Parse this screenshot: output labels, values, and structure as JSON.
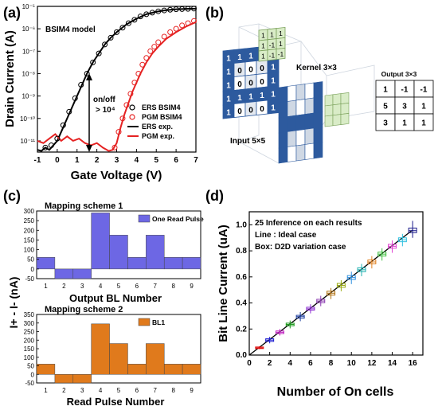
{
  "panels": [
    {
      "label": "(a)"
    },
    {
      "label": "(b)"
    },
    {
      "label": "(c)"
    },
    {
      "label": "(d)"
    }
  ],
  "chart_data": [
    {
      "type": "line",
      "panel": "(a)",
      "xlabel": "Gate Voltage (V)",
      "ylabel": "Drain Current (A)",
      "xlim": [
        -1,
        7
      ],
      "ylim_log10": [
        -11.5,
        -5
      ],
      "y_scale": "log",
      "x_ticks": [
        "-1",
        "0",
        "1",
        "2",
        "3",
        "4",
        "5",
        "6",
        "7"
      ],
      "y_ticks": [
        "10^-11",
        "10^-10",
        "10^-9",
        "10^-8",
        "10^-7",
        "10^-6",
        "10^-5"
      ],
      "inset_title": "BSIM4 model",
      "annotation": {
        "line1": "on/off",
        "line2": "> 10^4"
      },
      "legend_position": "lower-right",
      "series": [
        {
          "name": "ERS BSIM4",
          "style": "open-circle",
          "color": "#000000",
          "x": [
            -0.6,
            -0.3,
            0.0,
            0.3,
            0.6,
            0.9,
            1.2,
            1.5,
            1.8,
            2.1,
            2.4,
            2.7,
            3.0,
            3.3,
            3.6,
            3.9,
            4.2,
            4.5,
            4.8,
            5.1,
            5.4,
            5.7,
            6.0,
            6.3,
            6.6,
            6.9
          ],
          "log10_y": [
            -11.3,
            -11.2,
            -10.9,
            -10.3,
            -9.7,
            -9.1,
            -8.5,
            -8.0,
            -7.5,
            -7.1,
            -6.7,
            -6.4,
            -6.15,
            -5.95,
            -5.75,
            -5.6,
            -5.45,
            -5.35,
            -5.28,
            -5.22,
            -5.18,
            -5.15,
            -5.13,
            -5.12,
            -5.11,
            -5.1
          ]
        },
        {
          "name": "PGM BSIM4",
          "style": "open-circle",
          "color": "#e52222",
          "x": [
            2.9,
            3.1,
            3.3,
            3.5,
            3.7,
            3.9,
            4.1,
            4.3,
            4.5,
            4.7,
            4.9,
            5.1,
            5.4,
            5.7,
            6.0,
            6.3,
            6.6,
            6.9
          ],
          "log10_y": [
            -11.3,
            -10.6,
            -10.0,
            -9.4,
            -8.9,
            -8.4,
            -8.0,
            -7.6,
            -7.3,
            -7.0,
            -6.8,
            -6.6,
            -6.35,
            -6.15,
            -6.0,
            -5.85,
            -5.75,
            -5.65
          ]
        },
        {
          "name": "ERS exp.",
          "style": "line",
          "color": "#000000",
          "x": [
            -1.0,
            -0.8,
            -0.6,
            -0.4,
            -0.2,
            0.0,
            0.2,
            0.4,
            0.6,
            0.8,
            1.0,
            1.2,
            1.5,
            1.8,
            2.1,
            2.4,
            2.7,
            3.0,
            3.5,
            4.0,
            4.5,
            5.0,
            5.5,
            6.0,
            6.5,
            7.0
          ],
          "log10_y": [
            -11.4,
            -11.45,
            -11.3,
            -11.4,
            -11.2,
            -11.0,
            -10.6,
            -10.2,
            -9.8,
            -9.4,
            -9.0,
            -8.6,
            -8.0,
            -7.5,
            -7.1,
            -6.7,
            -6.4,
            -6.15,
            -5.8,
            -5.55,
            -5.35,
            -5.24,
            -5.17,
            -5.13,
            -5.11,
            -5.1
          ]
        },
        {
          "name": "PGM exp.",
          "style": "line",
          "color": "#e52222",
          "x": [
            -1.0,
            -0.7,
            -0.4,
            -0.1,
            0.2,
            0.5,
            0.8,
            1.1,
            1.4,
            1.7,
            2.0,
            2.3,
            2.6,
            2.8,
            3.0,
            3.2,
            3.4,
            3.6,
            3.8,
            4.0,
            4.2,
            4.5,
            4.8,
            5.1,
            5.5,
            6.0,
            6.5,
            7.0
          ],
          "log10_y": [
            -11.0,
            -11.1,
            -10.9,
            -10.7,
            -11.0,
            -10.8,
            -11.0,
            -10.9,
            -11.1,
            -11.2,
            -11.1,
            -11.3,
            -11.45,
            -11.4,
            -11.1,
            -10.4,
            -9.8,
            -9.3,
            -8.8,
            -8.4,
            -8.0,
            -7.5,
            -7.1,
            -6.8,
            -6.45,
            -6.15,
            -5.9,
            -5.7
          ]
        }
      ]
    },
    {
      "type": "diagram",
      "panel": "(b)",
      "input_label": "Input 5×5",
      "input_values": [
        [
          "1",
          "1",
          "1",
          "1",
          "1"
        ],
        [
          "1",
          "0",
          "0",
          "0",
          "1"
        ],
        [
          "1",
          "0",
          "0",
          "0",
          "1"
        ],
        [
          "1",
          "1",
          "1",
          "1",
          "1"
        ],
        [
          "1",
          "0",
          "0",
          "0",
          "1"
        ]
      ],
      "kernel_label": "Kernel 3×3",
      "kernel_values": [
        [
          "1",
          "1",
          "1"
        ],
        [
          "1",
          "-1",
          "1"
        ],
        [
          "1",
          "-1",
          "-1"
        ]
      ],
      "output_label": "Output 3×3",
      "output_values": [
        [
          "1",
          "-1",
          "-1"
        ],
        [
          "5",
          "3",
          "1"
        ],
        [
          "3",
          "1",
          "1"
        ]
      ]
    },
    {
      "type": "bar",
      "panel": "(c) top",
      "title": "Mapping scheme 1",
      "xlabel": "Output BL Number",
      "ylabel": "I+ - I- (nA)",
      "categories": [
        "1",
        "2",
        "3",
        "4",
        "5",
        "6",
        "7",
        "8",
        "9"
      ],
      "series": [
        {
          "name": "One Read Pulse",
          "color": "#6d67e4",
          "values": [
            60,
            -50,
            -50,
            290,
            175,
            60,
            175,
            60,
            60
          ]
        }
      ],
      "ylim": [
        -50,
        300
      ],
      "y_ticks": [
        "-50",
        "0",
        "50",
        "100",
        "150",
        "200",
        "250",
        "300"
      ],
      "legend_position": "top-right"
    },
    {
      "type": "bar",
      "panel": "(c) bottom",
      "title": "Mapping scheme 2",
      "xlabel": "Read Pulse Number",
      "ylabel": "I+ - I- (nA)",
      "categories": [
        "1",
        "2",
        "3",
        "4",
        "5",
        "6",
        "7",
        "8",
        "9"
      ],
      "series": [
        {
          "name": "BL1",
          "color": "#e07a1c",
          "values": [
            60,
            -50,
            -50,
            295,
            180,
            60,
            180,
            60,
            60
          ]
        }
      ],
      "ylim": [
        -50,
        350
      ],
      "y_ticks": [
        "-50",
        "0",
        "50",
        "100",
        "150",
        "200",
        "250",
        "300",
        "350"
      ],
      "legend_position": "top-right"
    },
    {
      "type": "scatter",
      "panel": "(d)",
      "xlabel": "Number of On cells",
      "ylabel": "Bit Line Current (uA)",
      "xlim": [
        0,
        17
      ],
      "ylim": [
        0,
        1.1
      ],
      "x_ticks": [
        "0",
        "2",
        "4",
        "6",
        "8",
        "10",
        "12",
        "14",
        "16"
      ],
      "y_ticks": [
        "0.0",
        "0.2",
        "0.4",
        "0.6",
        "0.8",
        "1.0"
      ],
      "annotations": [
        "25 Inference on each results",
        "Line : Ideal case",
        "Box: D2D variation case"
      ],
      "ideal_line": {
        "x": [
          0,
          16
        ],
        "y": [
          0,
          0.96
        ]
      },
      "boxes": [
        {
          "x": 1,
          "median": 0.055,
          "q1": 0.05,
          "q3": 0.062,
          "min": 0.045,
          "max": 0.068,
          "color": "#e01010"
        },
        {
          "x": 2,
          "median": 0.115,
          "q1": 0.105,
          "q3": 0.125,
          "min": 0.09,
          "max": 0.14,
          "color": "#1a1ad0"
        },
        {
          "x": 3,
          "median": 0.175,
          "q1": 0.165,
          "q3": 0.185,
          "min": 0.15,
          "max": 0.2,
          "color": "#c020c0"
        },
        {
          "x": 4,
          "median": 0.235,
          "q1": 0.225,
          "q3": 0.245,
          "min": 0.205,
          "max": 0.265,
          "color": "#1a9a1a"
        },
        {
          "x": 5,
          "median": 0.295,
          "q1": 0.283,
          "q3": 0.305,
          "min": 0.26,
          "max": 0.33,
          "color": "#2040a0"
        },
        {
          "x": 6,
          "median": 0.355,
          "q1": 0.345,
          "q3": 0.367,
          "min": 0.32,
          "max": 0.39,
          "color": "#8a2ad0"
        },
        {
          "x": 7,
          "median": 0.415,
          "q1": 0.402,
          "q3": 0.428,
          "min": 0.375,
          "max": 0.455,
          "color": "#8a3ab0"
        },
        {
          "x": 8,
          "median": 0.475,
          "q1": 0.46,
          "q3": 0.49,
          "min": 0.43,
          "max": 0.515,
          "color": "#b07010"
        },
        {
          "x": 9,
          "median": 0.535,
          "q1": 0.52,
          "q3": 0.55,
          "min": 0.49,
          "max": 0.575,
          "color": "#9aaa10"
        },
        {
          "x": 10,
          "median": 0.595,
          "q1": 0.58,
          "q3": 0.61,
          "min": 0.545,
          "max": 0.64,
          "color": "#3090e0"
        },
        {
          "x": 11,
          "median": 0.655,
          "q1": 0.64,
          "q3": 0.67,
          "min": 0.605,
          "max": 0.7,
          "color": "#20b0b0"
        },
        {
          "x": 12,
          "median": 0.715,
          "q1": 0.7,
          "q3": 0.73,
          "min": 0.665,
          "max": 0.76,
          "color": "#e08020"
        },
        {
          "x": 13,
          "median": 0.775,
          "q1": 0.76,
          "q3": 0.79,
          "min": 0.725,
          "max": 0.82,
          "color": "#40c040"
        },
        {
          "x": 14,
          "median": 0.835,
          "q1": 0.82,
          "q3": 0.85,
          "min": 0.785,
          "max": 0.88,
          "color": "#e040d0"
        },
        {
          "x": 15,
          "median": 0.885,
          "q1": 0.87,
          "q3": 0.9,
          "min": 0.835,
          "max": 0.93,
          "color": "#30c0e0"
        },
        {
          "x": 16,
          "median": 0.955,
          "q1": 0.94,
          "q3": 0.975,
          "min": 0.9,
          "max": 1.03,
          "color": "#1a1a8a"
        }
      ]
    }
  ]
}
